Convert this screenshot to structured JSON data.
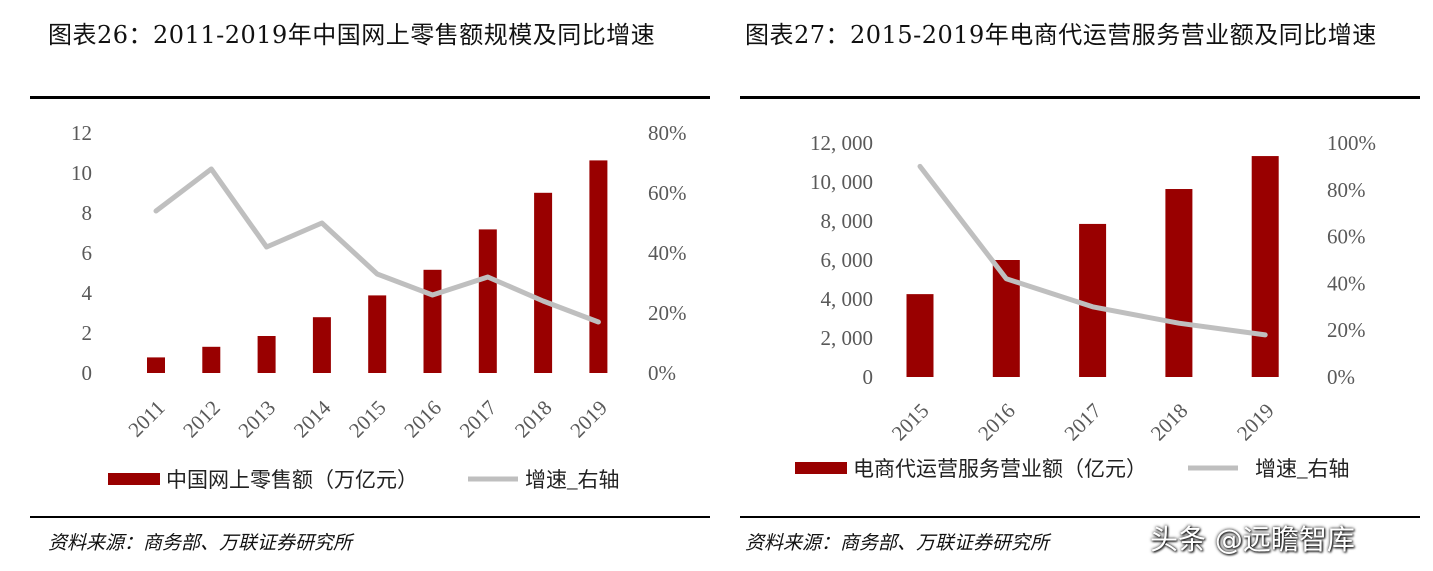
{
  "left": {
    "title": "图表26：2011-2019年中国网上零售额规模及同比增速",
    "source": "资料来源：商务部、万联证券研究所"
  },
  "right": {
    "title": "图表27：2015-2019年电商代运营服务营业额及同比增速",
    "source": "资料来源：商务部、万联证券研究所"
  },
  "watermark": "头条 @远瞻智库",
  "colors": {
    "bar": "#990000",
    "line": "#BFBFBF",
    "axis_text": "#595959"
  },
  "chart_data": [
    {
      "type": "bar+line",
      "title": "图表26：2011-2019年中国网上零售额规模及同比增速",
      "categories": [
        "2011",
        "2012",
        "2013",
        "2014",
        "2015",
        "2016",
        "2017",
        "2018",
        "2019"
      ],
      "series": [
        {
          "name": "中国网上零售额（万亿元）",
          "type": "bar",
          "axis": "left",
          "values": [
            0.78,
            1.31,
            1.85,
            2.79,
            3.88,
            5.16,
            7.18,
            9.01,
            10.63
          ]
        },
        {
          "name": "增速_右轴",
          "type": "line",
          "axis": "right",
          "values": [
            0.54,
            0.68,
            0.42,
            0.5,
            0.33,
            0.26,
            0.32,
            0.24,
            0.17
          ]
        }
      ],
      "y_left": {
        "range": [
          0,
          12
        ],
        "ticks": [
          "0",
          "2",
          "4",
          "6",
          "8",
          "10",
          "12"
        ]
      },
      "y_right": {
        "range": [
          0,
          0.8
        ],
        "ticks": [
          "0%",
          "20%",
          "40%",
          "60%",
          "80%"
        ]
      },
      "grid": false,
      "legend": "bottom"
    },
    {
      "type": "bar+line",
      "title": "图表27：2015-2019年电商代运营服务营业额及同比增速",
      "categories": [
        "2015",
        "2016",
        "2017",
        "2018",
        "2019"
      ],
      "series": [
        {
          "name": "电商代运营服务营业额（亿元）",
          "type": "bar",
          "axis": "left",
          "values": [
            4250,
            6000,
            7850,
            9640,
            11330
          ]
        },
        {
          "name": "增速_右轴",
          "type": "line",
          "axis": "right",
          "values": [
            0.9,
            0.42,
            0.3,
            0.23,
            0.18
          ]
        }
      ],
      "y_left": {
        "range": [
          0,
          12000
        ],
        "ticks": [
          "0",
          "2, 000",
          "4, 000",
          "6, 000",
          "8, 000",
          "10, 000",
          "12, 000"
        ]
      },
      "y_right": {
        "range": [
          0,
          1
        ],
        "ticks": [
          "0%",
          "20%",
          "40%",
          "60%",
          "80%",
          "100%"
        ]
      },
      "grid": false,
      "legend": "bottom"
    }
  ]
}
